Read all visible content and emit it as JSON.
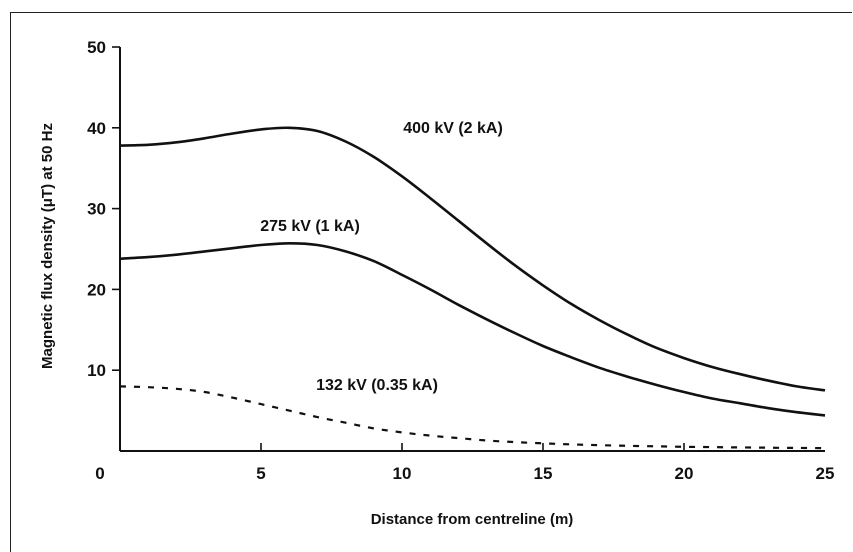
{
  "chart_data": {
    "type": "line",
    "xlabel": "Distance from centreline (m)",
    "ylabel": "Magnetic flux density (μT) at 50 Hz",
    "xlim": [
      0,
      25
    ],
    "ylim": [
      0,
      50
    ],
    "xticks": [
      "0",
      "5",
      "10",
      "15",
      "20",
      "25"
    ],
    "yticks": [
      "10",
      "20",
      "30",
      "40",
      "50"
    ],
    "grid": false,
    "series": [
      {
        "name": "400 kV (2 kA)",
        "style": "solid",
        "x": [
          0,
          1,
          2,
          3,
          4,
          5,
          6,
          7,
          8,
          9,
          10,
          11,
          12,
          13,
          14,
          15,
          16,
          17,
          18,
          19,
          20,
          21,
          22,
          23,
          24,
          25
        ],
        "y": [
          37.8,
          37.9,
          38.2,
          38.7,
          39.3,
          39.8,
          40.0,
          39.6,
          38.3,
          36.4,
          34.0,
          31.3,
          28.5,
          25.7,
          23.0,
          20.5,
          18.2,
          16.2,
          14.4,
          12.8,
          11.5,
          10.4,
          9.5,
          8.7,
          8.0,
          7.5
        ]
      },
      {
        "name": "275 kV (1 kA)",
        "style": "solid",
        "x": [
          0,
          1,
          2,
          3,
          4,
          5,
          6,
          7,
          8,
          9,
          10,
          11,
          12,
          13,
          14,
          15,
          16,
          17,
          18,
          19,
          20,
          21,
          22,
          23,
          24,
          25
        ],
        "y": [
          23.8,
          24.0,
          24.3,
          24.7,
          25.1,
          25.5,
          25.7,
          25.5,
          24.7,
          23.5,
          21.8,
          20.0,
          18.1,
          16.3,
          14.6,
          13.0,
          11.6,
          10.3,
          9.2,
          8.2,
          7.3,
          6.5,
          5.9,
          5.3,
          4.8,
          4.4
        ]
      },
      {
        "name": "132 kV (0.35 kA)",
        "style": "dashed",
        "x": [
          0,
          1,
          2,
          3,
          4,
          5,
          6,
          7,
          8,
          9,
          10,
          11,
          12,
          13,
          14,
          15,
          16,
          17,
          18,
          19,
          20,
          21,
          22,
          23,
          24,
          25
        ],
        "y": [
          8.0,
          7.9,
          7.7,
          7.3,
          6.6,
          5.8,
          5.0,
          4.2,
          3.5,
          2.8,
          2.3,
          1.9,
          1.6,
          1.3,
          1.1,
          0.95,
          0.82,
          0.72,
          0.64,
          0.58,
          0.52,
          0.48,
          0.44,
          0.41,
          0.38,
          0.36
        ]
      }
    ]
  }
}
